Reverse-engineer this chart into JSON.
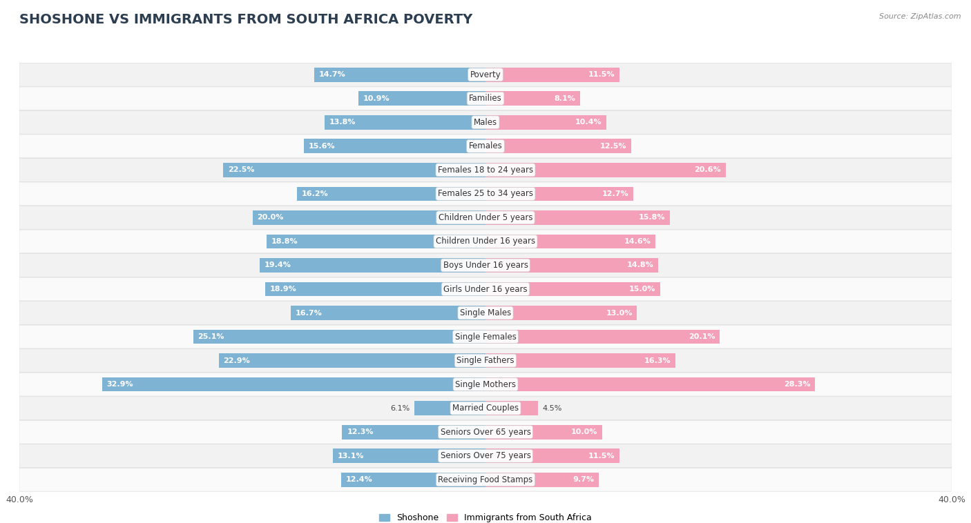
{
  "title": "SHOSHONE VS IMMIGRANTS FROM SOUTH AFRICA POVERTY",
  "source": "Source: ZipAtlas.com",
  "categories": [
    "Poverty",
    "Families",
    "Males",
    "Females",
    "Females 18 to 24 years",
    "Females 25 to 34 years",
    "Children Under 5 years",
    "Children Under 16 years",
    "Boys Under 16 years",
    "Girls Under 16 years",
    "Single Males",
    "Single Females",
    "Single Fathers",
    "Single Mothers",
    "Married Couples",
    "Seniors Over 65 years",
    "Seniors Over 75 years",
    "Receiving Food Stamps"
  ],
  "shoshone": [
    14.7,
    10.9,
    13.8,
    15.6,
    22.5,
    16.2,
    20.0,
    18.8,
    19.4,
    18.9,
    16.7,
    25.1,
    22.9,
    32.9,
    6.1,
    12.3,
    13.1,
    12.4
  ],
  "immigrants": [
    11.5,
    8.1,
    10.4,
    12.5,
    20.6,
    12.7,
    15.8,
    14.6,
    14.8,
    15.0,
    13.0,
    20.1,
    16.3,
    28.3,
    4.5,
    10.0,
    11.5,
    9.7
  ],
  "shoshone_color": "#7fb3d3",
  "immigrants_color": "#f4a0b8",
  "row_bg_odd": "#f2f2f2",
  "row_bg_even": "#fafafa",
  "xlim": 40.0,
  "legend_label_left": "Shoshone",
  "legend_label_right": "Immigrants from South Africa",
  "title_fontsize": 14,
  "label_fontsize": 8.5,
  "value_fontsize": 8.0,
  "bar_height": 0.6
}
